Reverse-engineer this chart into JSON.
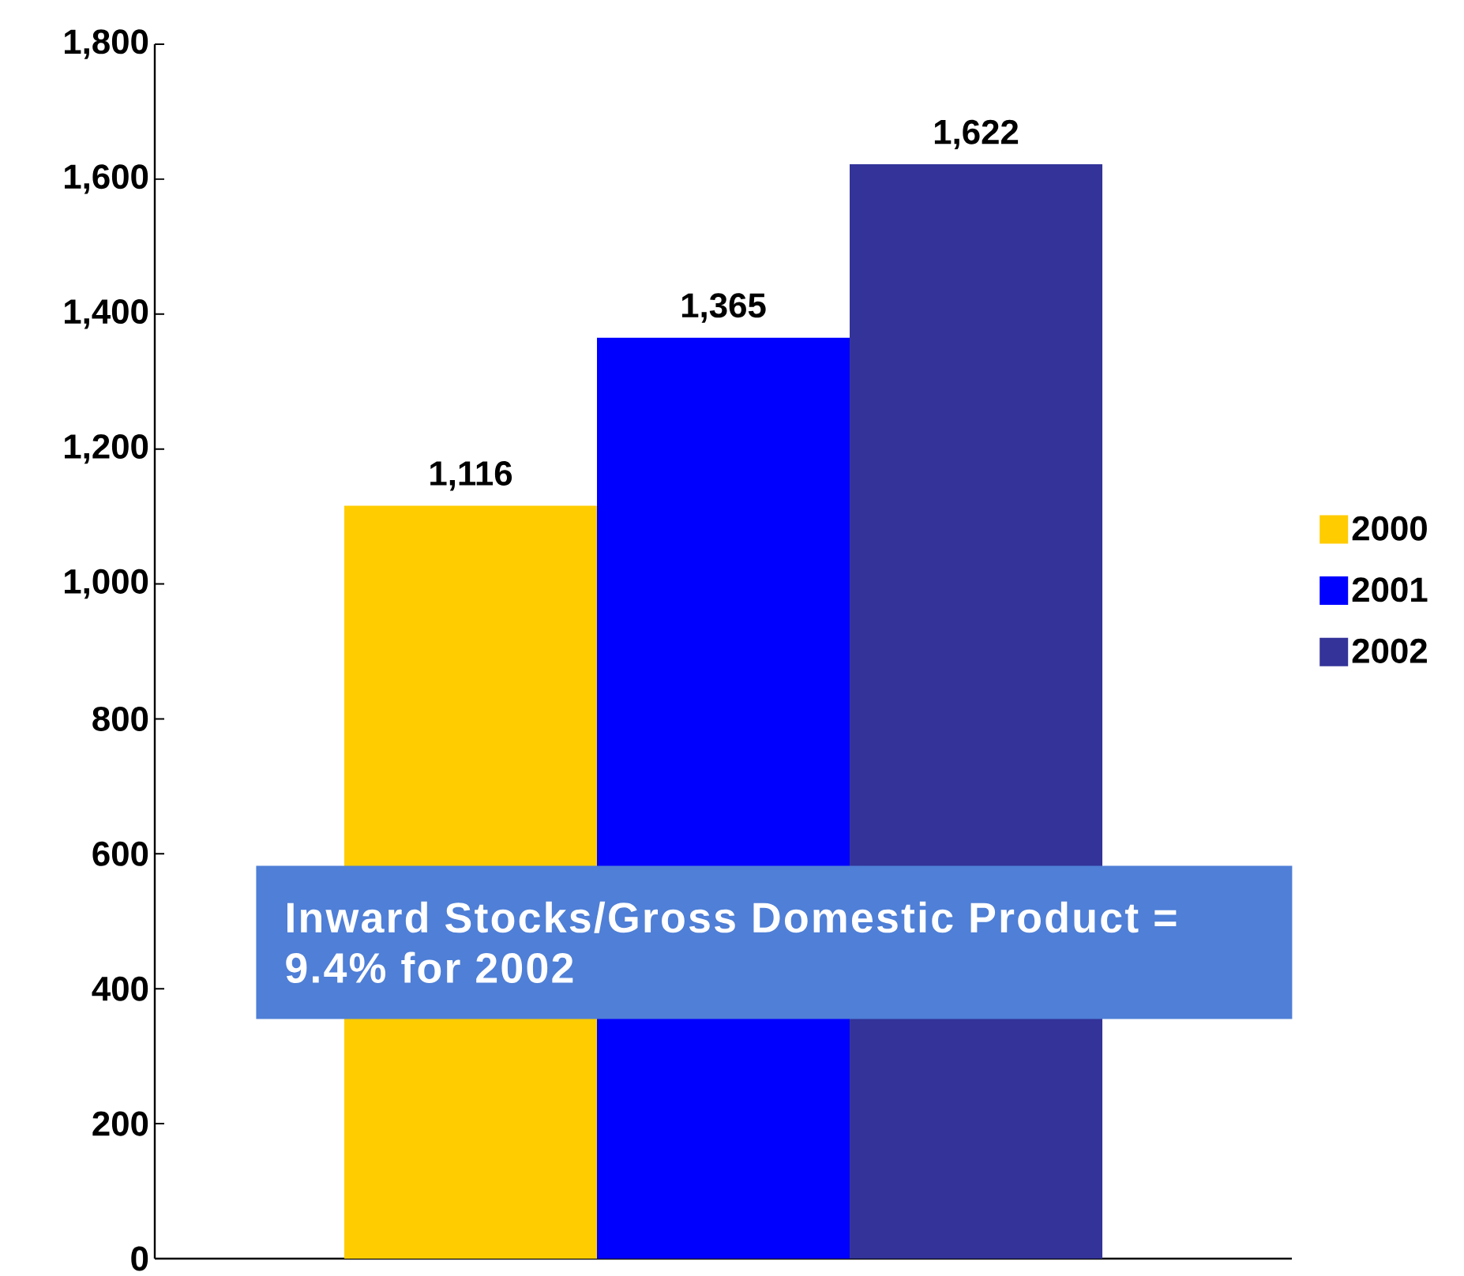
{
  "chart_data": {
    "type": "bar",
    "categories": [
      null
    ],
    "series": [
      {
        "name": "2000",
        "color": "#ffcc00",
        "values": [
          1116
        ],
        "value_labels": [
          "1,116"
        ]
      },
      {
        "name": "2001",
        "color": "#0000ff",
        "values": [
          1365
        ],
        "value_labels": [
          "1,365"
        ]
      },
      {
        "name": "2002",
        "color": "#333399",
        "values": [
          1622
        ],
        "value_labels": [
          "1,622"
        ]
      }
    ],
    "ylim": [
      0,
      1800
    ],
    "yticks": [
      0,
      200,
      400,
      600,
      800,
      {
        "value": 1000,
        "label": "1,000"
      },
      {
        "value": 1200,
        "label": "1,200"
      },
      {
        "value": 1400,
        "label": "1,400"
      },
      {
        "value": 1600,
        "label": "1,600"
      },
      {
        "value": 1800,
        "label": "1,800"
      }
    ],
    "tick_labels": "y",
    "grid": false,
    "legend": "right",
    "annotations": [
      "Inward Stocks/Gross Domestic Product = 9.4% for 2002"
    ]
  }
}
